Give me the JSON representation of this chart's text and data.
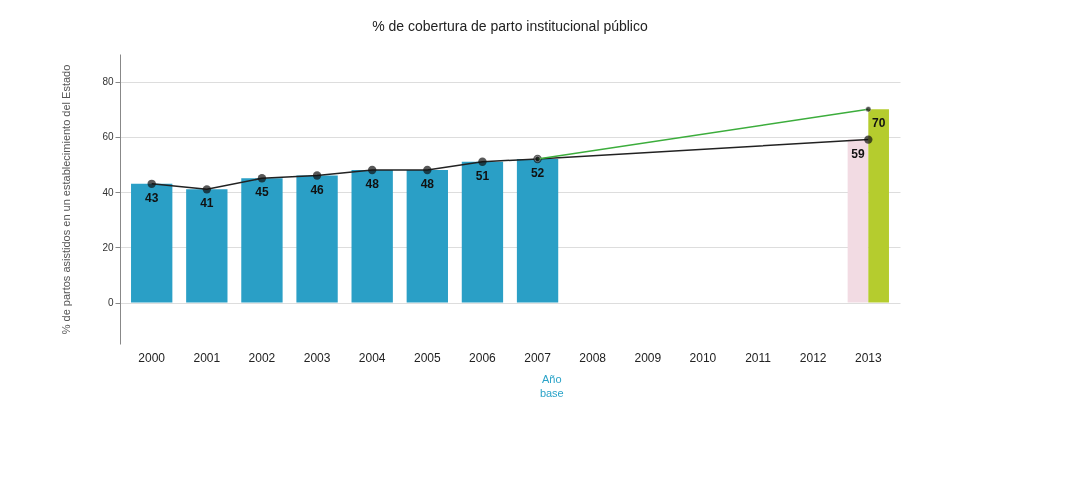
{
  "chart_data": {
    "type": "bar",
    "title": "% de cobertura de parto institucional público",
    "ylabel": "% de partos asistidos en un establecimiento del Estado",
    "categories": [
      "2000",
      "2001",
      "2002",
      "2003",
      "2004",
      "2005",
      "2006",
      "2007",
      "2008",
      "2009",
      "2010",
      "2011",
      "2012",
      "2013"
    ],
    "series": [
      {
        "colors": [
          "#2a9fc6",
          "#2a9fc6",
          "#2a9fc6",
          "#2a9fc6",
          "#2a9fc6",
          "#2a9fc6",
          "#2a9fc6",
          "#2a9fc6",
          null,
          null,
          null,
          null,
          null,
          "#f2dbe3"
        ],
        "values": [
          43,
          41,
          45,
          46,
          48,
          48,
          51,
          52,
          null,
          null,
          null,
          null,
          null,
          59
        ],
        "value_labels": [
          "43",
          "41",
          "45",
          "46",
          "48",
          "48",
          "51",
          "52",
          null,
          null,
          null,
          null,
          null,
          "59"
        ]
      },
      {
        "color": "#b5cc2e",
        "values": [
          null,
          null,
          null,
          null,
          null,
          null,
          null,
          null,
          null,
          null,
          null,
          null,
          null,
          70
        ],
        "value_labels": [
          null,
          null,
          null,
          null,
          null,
          null,
          null,
          null,
          null,
          null,
          null,
          null,
          null,
          "70"
        ]
      },
      {
        "type": "line",
        "color": "#222222",
        "values": [
          43,
          41,
          45,
          46,
          48,
          48,
          51,
          52,
          null,
          null,
          null,
          null,
          null,
          59
        ]
      },
      {
        "type": "line",
        "color": "#3cad3c",
        "values": [
          null,
          null,
          null,
          null,
          null,
          null,
          null,
          52,
          null,
          null,
          null,
          null,
          null,
          70
        ]
      }
    ],
    "ylim": [
      -15,
      90
    ],
    "yticks": [
      0,
      20,
      40,
      60,
      80
    ],
    "grid": "y",
    "marker": "circle",
    "annotations": [
      "Año base"
    ]
  }
}
